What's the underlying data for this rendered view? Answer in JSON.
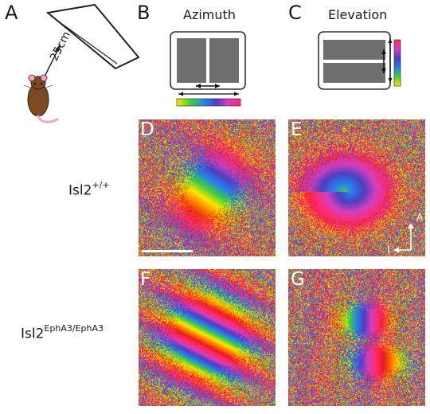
{
  "panels": {
    "a": {
      "letter": "A",
      "distance_label": "25cm"
    },
    "b": {
      "letter": "B",
      "title": "Azimuth"
    },
    "c": {
      "letter": "C",
      "title": "Elevation"
    },
    "d": {
      "letter": "D"
    },
    "e": {
      "letter": "E"
    },
    "f": {
      "letter": "F"
    },
    "g": {
      "letter": "G"
    }
  },
  "rows": {
    "wildtype": {
      "base": "Isl2",
      "sup": "+/+"
    },
    "mutant": {
      "base": "Isl2",
      "sup": "EphA3/EphA3"
    }
  },
  "compass": {
    "anterior": "A",
    "lateral": "L"
  },
  "colors": {
    "phase_wheel": [
      "#e81e1e",
      "#ff7a00",
      "#ffe600",
      "#3ecf3e",
      "#2a7df0",
      "#4b3fbf",
      "#d63fbf",
      "#ff2a6a"
    ],
    "monitor_fill": "#6e6e6e",
    "mouse_body": "#7a4a22",
    "mouse_tail": "#f3a7c4"
  }
}
